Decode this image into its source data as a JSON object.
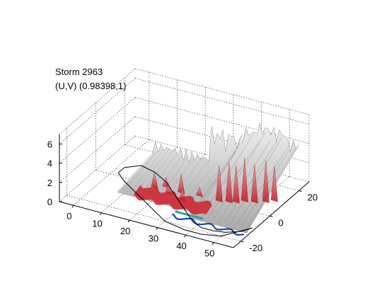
{
  "chart_data": {
    "type": "surface3d",
    "title": [
      "Storm 2963",
      "(U,V) (0.98398,1)"
    ],
    "x_ticks": [
      0,
      10,
      20,
      30,
      40,
      50
    ],
    "y_ticks": [
      -20,
      0,
      20
    ],
    "z_ticks": [
      0,
      2,
      4,
      6
    ],
    "xlim": [
      -5,
      57
    ],
    "ylim": [
      -25,
      27
    ],
    "zlim": [
      0,
      7
    ],
    "grid": true,
    "surfaces": [
      {
        "role": "storm-surface",
        "color": "#c8c8c8"
      },
      {
        "role": "highlight-regions",
        "color": "#cc1f2a"
      },
      {
        "role": "base-contour",
        "color": "#000000"
      }
    ]
  }
}
